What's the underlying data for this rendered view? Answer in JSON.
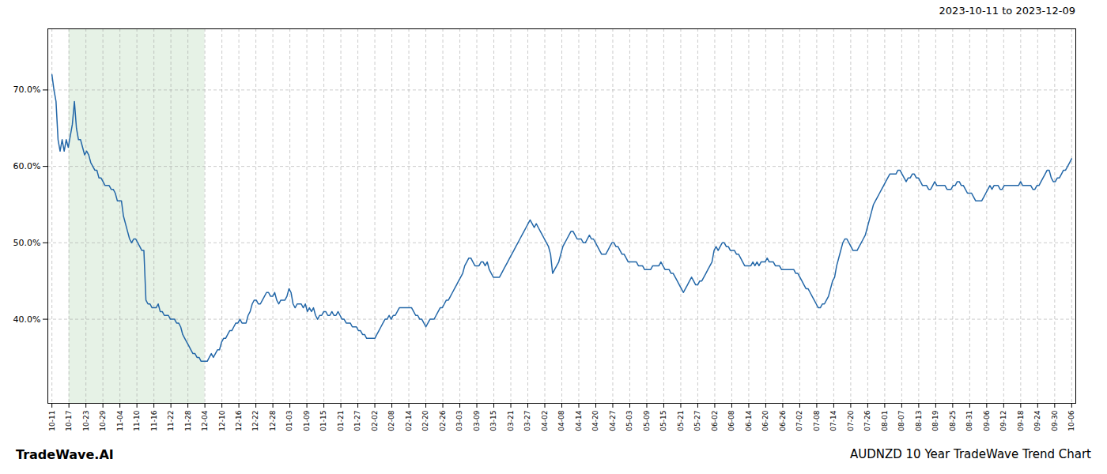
{
  "chart_data": {
    "type": "line",
    "title": "AUDNZD 10 Year TradeWave Trend Chart",
    "subtitle": "2023-10-11 to 2023-12-09",
    "annotations": [
      "TradeWave.AI"
    ],
    "color": "#2367a8",
    "grid": true,
    "xlim": [
      -2,
      501
    ],
    "ylim": [
      29,
      78
    ],
    "yticks": [
      {
        "value": 40.0,
        "label": "40.0%"
      },
      {
        "value": 50.0,
        "label": "50.0%"
      },
      {
        "value": 60.0,
        "label": "60.0%"
      },
      {
        "value": 70.0,
        "label": "70.0%"
      }
    ],
    "xticks": [
      {
        "value": 0,
        "label": "10-11"
      },
      {
        "value": 8.3167,
        "label": "10-17"
      },
      {
        "value": 16.6333,
        "label": "10-23"
      },
      {
        "value": 24.95,
        "label": "10-29"
      },
      {
        "value": 33.2667,
        "label": "11-04"
      },
      {
        "value": 41.5833,
        "label": "11-10"
      },
      {
        "value": 49.9,
        "label": "11-16"
      },
      {
        "value": 58.2167,
        "label": "11-22"
      },
      {
        "value": 66.5333,
        "label": "11-28"
      },
      {
        "value": 74.85,
        "label": "12-04"
      },
      {
        "value": 83.1667,
        "label": "12-10"
      },
      {
        "value": 91.4833,
        "label": "12-16"
      },
      {
        "value": 99.8,
        "label": "12-22"
      },
      {
        "value": 108.1167,
        "label": "12-28"
      },
      {
        "value": 116.4333,
        "label": "01-03"
      },
      {
        "value": 124.75,
        "label": "01-09"
      },
      {
        "value": 133.0667,
        "label": "01-15"
      },
      {
        "value": 141.3833,
        "label": "01-21"
      },
      {
        "value": 149.7,
        "label": "01-27"
      },
      {
        "value": 158.0167,
        "label": "02-02"
      },
      {
        "value": 166.3333,
        "label": "02-08"
      },
      {
        "value": 174.65,
        "label": "02-14"
      },
      {
        "value": 182.9667,
        "label": "02-20"
      },
      {
        "value": 191.2833,
        "label": "02-26"
      },
      {
        "value": 199.6,
        "label": "03-03"
      },
      {
        "value": 207.9167,
        "label": "03-09"
      },
      {
        "value": 216.2333,
        "label": "03-15"
      },
      {
        "value": 224.55,
        "label": "03-21"
      },
      {
        "value": 232.8667,
        "label": "03-27"
      },
      {
        "value": 241.1833,
        "label": "04-02"
      },
      {
        "value": 249.5,
        "label": "04-08"
      },
      {
        "value": 257.8167,
        "label": "04-14"
      },
      {
        "value": 266.1333,
        "label": "04-20"
      },
      {
        "value": 274.45,
        "label": "04-27"
      },
      {
        "value": 282.7667,
        "label": "05-03"
      },
      {
        "value": 291.0833,
        "label": "05-09"
      },
      {
        "value": 299.4,
        "label": "05-15"
      },
      {
        "value": 307.7167,
        "label": "05-21"
      },
      {
        "value": 316.0333,
        "label": "05-27"
      },
      {
        "value": 324.35,
        "label": "06-02"
      },
      {
        "value": 332.6667,
        "label": "06-08"
      },
      {
        "value": 340.9833,
        "label": "06-14"
      },
      {
        "value": 349.3,
        "label": "06-20"
      },
      {
        "value": 357.6167,
        "label": "06-26"
      },
      {
        "value": 365.9333,
        "label": "07-02"
      },
      {
        "value": 374.25,
        "label": "07-08"
      },
      {
        "value": 382.5667,
        "label": "07-14"
      },
      {
        "value": 390.8833,
        "label": "07-20"
      },
      {
        "value": 399.2,
        "label": "07-26"
      },
      {
        "value": 407.5167,
        "label": "08-01"
      },
      {
        "value": 415.8333,
        "label": "08-07"
      },
      {
        "value": 424.15,
        "label": "08-13"
      },
      {
        "value": 432.4667,
        "label": "08-19"
      },
      {
        "value": 440.7833,
        "label": "08-25"
      },
      {
        "value": 449.1,
        "label": "08-31"
      },
      {
        "value": 457.4167,
        "label": "09-06"
      },
      {
        "value": 465.7333,
        "label": "09-12"
      },
      {
        "value": 474.05,
        "label": "09-18"
      },
      {
        "value": 482.3667,
        "label": "09-24"
      },
      {
        "value": 490.6833,
        "label": "09-30"
      },
      {
        "value": 499,
        "label": "10-06"
      }
    ],
    "highlight": {
      "x1": 8.3167,
      "x2": 74.85,
      "color": "#d6ead6"
    },
    "values": [
      72.0,
      70.0,
      68.5,
      63.5,
      62.0,
      63.5,
      62.0,
      63.5,
      62.5,
      64.0,
      65.5,
      68.5,
      65.0,
      63.5,
      63.5,
      62.5,
      61.5,
      62.0,
      61.5,
      60.5,
      60.0,
      59.5,
      59.5,
      58.5,
      58.5,
      58.0,
      57.5,
      57.5,
      57.5,
      57.0,
      57.0,
      56.5,
      55.5,
      55.5,
      55.5,
      53.5,
      52.5,
      51.5,
      50.5,
      50.0,
      50.5,
      50.5,
      50.0,
      49.5,
      49.0,
      49.0,
      42.5,
      42.0,
      42.0,
      41.5,
      41.5,
      41.5,
      42.0,
      41.0,
      41.0,
      40.5,
      40.5,
      40.5,
      40.0,
      40.0,
      40.0,
      39.5,
      39.5,
      39.0,
      38.0,
      37.5,
      37.0,
      36.5,
      36.0,
      35.5,
      35.5,
      35.0,
      35.0,
      34.5,
      34.5,
      34.5,
      34.5,
      35.0,
      35.5,
      35.0,
      35.5,
      36.0,
      36.0,
      37.0,
      37.5,
      37.5,
      38.0,
      38.5,
      38.5,
      39.0,
      39.5,
      39.5,
      40.0,
      39.5,
      39.5,
      39.5,
      40.5,
      41.0,
      42.0,
      42.5,
      42.5,
      42.0,
      42.0,
      42.5,
      43.0,
      43.5,
      43.5,
      43.0,
      43.0,
      43.5,
      42.5,
      42.0,
      42.5,
      42.5,
      42.5,
      43.0,
      44.0,
      43.5,
      42.0,
      41.5,
      42.0,
      42.0,
      42.0,
      41.5,
      42.0,
      41.0,
      41.5,
      41.0,
      41.5,
      40.5,
      40.0,
      40.5,
      40.5,
      41.0,
      41.0,
      40.5,
      40.5,
      41.0,
      40.5,
      40.5,
      41.0,
      40.5,
      40.0,
      40.0,
      39.5,
      39.5,
      39.5,
      39.0,
      39.0,
      39.0,
      38.5,
      38.5,
      38.0,
      38.0,
      37.5,
      37.5,
      37.5,
      37.5,
      37.5,
      38.0,
      38.5,
      39.0,
      39.5,
      40.0,
      40.0,
      40.5,
      40.0,
      40.5,
      40.5,
      41.0,
      41.5,
      41.5,
      41.5,
      41.5,
      41.5,
      41.5,
      41.5,
      41.0,
      40.5,
      40.5,
      40.0,
      40.0,
      39.5,
      39.0,
      39.5,
      40.0,
      40.0,
      40.0,
      40.5,
      41.0,
      41.5,
      41.5,
      42.0,
      42.5,
      42.5,
      43.0,
      43.5,
      44.0,
      44.5,
      45.0,
      45.5,
      46.0,
      47.0,
      47.5,
      48.0,
      48.0,
      47.5,
      47.0,
      47.0,
      47.0,
      47.5,
      47.5,
      47.0,
      47.5,
      46.5,
      46.0,
      45.5,
      45.5,
      45.5,
      45.5,
      46.0,
      46.5,
      47.0,
      47.5,
      48.0,
      48.5,
      49.0,
      49.5,
      50.0,
      50.5,
      51.0,
      51.5,
      52.0,
      52.5,
      53.0,
      52.5,
      52.0,
      52.5,
      52.0,
      51.5,
      51.0,
      50.5,
      50.0,
      49.5,
      48.5,
      46.0,
      46.5,
      47.0,
      47.5,
      48.5,
      49.5,
      50.0,
      50.5,
      51.0,
      51.5,
      51.5,
      51.0,
      50.5,
      50.5,
      50.5,
      50.0,
      50.0,
      50.5,
      51.0,
      50.5,
      50.5,
      50.0,
      49.5,
      49.0,
      48.5,
      48.5,
      48.5,
      49.0,
      49.5,
      50.0,
      50.0,
      49.5,
      49.5,
      49.0,
      48.5,
      48.5,
      48.0,
      47.5,
      47.5,
      47.5,
      47.5,
      47.5,
      47.0,
      47.0,
      47.0,
      46.5,
      46.5,
      46.5,
      46.5,
      47.0,
      47.0,
      47.0,
      47.0,
      47.5,
      47.0,
      46.5,
      46.5,
      46.5,
      46.0,
      46.0,
      45.5,
      45.0,
      44.5,
      44.0,
      43.5,
      44.0,
      44.5,
      45.0,
      45.5,
      45.0,
      44.5,
      44.5,
      45.0,
      45.0,
      45.5,
      46.0,
      46.5,
      47.0,
      47.5,
      49.0,
      49.5,
      49.0,
      49.5,
      50.0,
      50.0,
      49.5,
      49.5,
      49.0,
      49.0,
      49.0,
      48.5,
      48.5,
      48.0,
      47.5,
      47.0,
      47.0,
      47.0,
      47.0,
      47.5,
      47.0,
      47.5,
      47.0,
      47.5,
      47.5,
      47.5,
      48.0,
      47.5,
      47.5,
      47.5,
      47.0,
      47.0,
      47.0,
      46.5,
      46.5,
      46.5,
      46.5,
      46.5,
      46.5,
      46.5,
      46.0,
      46.0,
      45.5,
      45.0,
      44.5,
      44.0,
      44.0,
      43.5,
      43.0,
      42.5,
      42.0,
      41.5,
      41.5,
      42.0,
      42.0,
      42.5,
      43.0,
      44.0,
      45.0,
      45.5,
      47.0,
      48.0,
      49.0,
      50.0,
      50.5,
      50.5,
      50.0,
      49.5,
      49.0,
      49.0,
      49.0,
      49.5,
      50.0,
      50.5,
      51.0,
      52.0,
      53.0,
      54.0,
      55.0,
      55.5,
      56.0,
      56.5,
      57.0,
      57.5,
      58.0,
      58.5,
      59.0,
      59.0,
      59.0,
      59.0,
      59.5,
      59.5,
      59.0,
      58.5,
      58.0,
      58.5,
      58.5,
      59.0,
      59.0,
      58.5,
      58.5,
      58.0,
      57.5,
      57.5,
      57.5,
      57.0,
      57.0,
      57.5,
      58.0,
      57.5,
      57.5,
      57.5,
      57.5,
      57.5,
      57.0,
      57.0,
      57.0,
      57.5,
      57.5,
      58.0,
      58.0,
      57.5,
      57.5,
      57.0,
      56.5,
      56.5,
      56.5,
      56.0,
      55.5,
      55.5,
      55.5,
      55.5,
      56.0,
      56.5,
      57.0,
      57.5,
      57.0,
      57.5,
      57.5,
      57.5,
      57.0,
      57.0,
      57.5,
      57.5,
      57.5,
      57.5,
      57.5,
      57.5,
      57.5,
      57.5,
      58.0,
      57.5,
      57.5,
      57.5,
      57.5,
      57.5,
      57.0,
      57.0,
      57.5,
      57.5,
      58.0,
      58.5,
      59.0,
      59.5,
      59.5,
      58.5,
      58.0,
      58.0,
      58.5,
      58.5,
      59.0,
      59.5,
      59.5,
      60.0,
      60.5,
      61.0
    ]
  }
}
